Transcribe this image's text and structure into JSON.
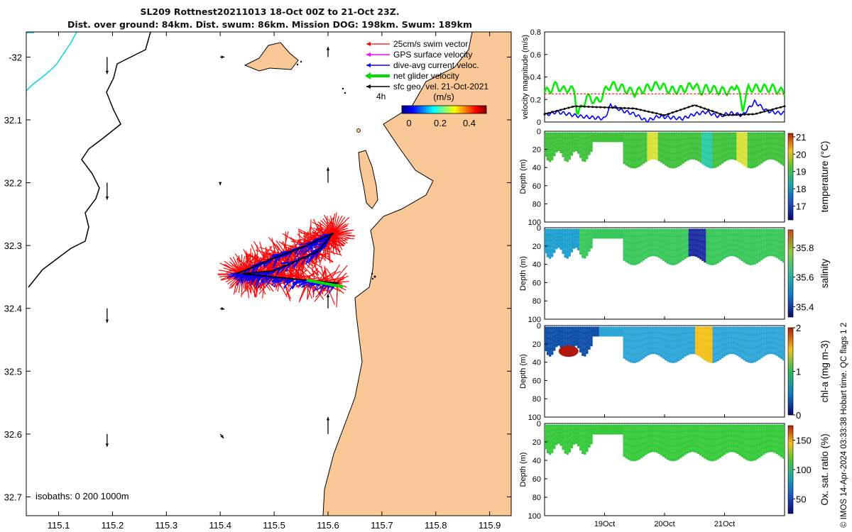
{
  "titles": {
    "line1": "SL209 Rottnest20211013 18-Oct 00Z to 21-Oct 23Z.",
    "line2": "Dist. over ground: 84km. Dist. swum: 86km. Mission DOG: 198km. Swum: 189km"
  },
  "credit": "© IMOS 14-Apr-2024 03:33:38 Hobart time. QC flags 1  2",
  "colors": {
    "land": "#FAC897",
    "swim_vector": "#FF0000",
    "gps_surface": "#FF00FF",
    "dive_avg_current": "#0000FF",
    "net_glider": "#00DD00",
    "geostrophic": "#000000",
    "coast_isobath": "#00D8E8"
  },
  "chart_data": [
    {
      "type": "scatter",
      "name": "track-map",
      "xlim": [
        115.04,
        115.94
      ],
      "ylim": [
        -32.73,
        -31.96
      ],
      "x_ticks": [
        "115.1",
        "115.2",
        "115.3",
        "115.4",
        "115.5",
        "115.6",
        "115.7",
        "115.8",
        "115.9"
      ],
      "y_ticks": [
        "-32",
        "32.1",
        "32.2",
        "32.3",
        "32.4",
        "32.5",
        "32.6",
        "32.7"
      ],
      "legend": {
        "placement": "top-right",
        "entries": [
          "25cm/s swim vector",
          "GPS surface velocity",
          "dive-avg current veloc.",
          "net glider velocity",
          "sfc geo. vel. 21-Oct-2021"
        ],
        "time_label": "4h"
      },
      "colorbar": {
        "label": "(m/s)",
        "ticks": [
          "0",
          "0.2",
          "0.4"
        ],
        "range": [
          0,
          0.5
        ]
      },
      "isobath_label": "isobaths: 0   200  1000m",
      "glider_track": [
        [
          115.43,
          -32.345
        ],
        [
          115.5,
          -32.32
        ],
        [
          115.56,
          -32.3
        ],
        [
          115.61,
          -32.28
        ],
        [
          115.58,
          -32.31
        ],
        [
          115.5,
          -32.34
        ],
        [
          115.44,
          -32.345
        ],
        [
          115.5,
          -32.35
        ],
        [
          115.56,
          -32.355
        ],
        [
          115.62,
          -32.36
        ]
      ],
      "geo_arrows": [
        {
          "lon": 115.19,
          "lat": -32.0,
          "u": 0,
          "v": -0.2
        },
        {
          "lon": 115.19,
          "lat": -32.2,
          "u": 0,
          "v": -0.2
        },
        {
          "lon": 115.19,
          "lat": -32.4,
          "u": 0,
          "v": -0.17
        },
        {
          "lon": 115.19,
          "lat": -32.6,
          "u": 0,
          "v": -0.15
        },
        {
          "lon": 115.4,
          "lat": -32.0,
          "u": 0.05,
          "v": 0
        },
        {
          "lon": 115.4,
          "lat": -32.2,
          "u": 0,
          "v": -0.03
        },
        {
          "lon": 115.4,
          "lat": -32.4,
          "u": 0.05,
          "v": -0.01
        },
        {
          "lon": 115.4,
          "lat": -32.6,
          "u": 0.04,
          "v": -0.05
        },
        {
          "lon": 115.6,
          "lat": -32.0,
          "u": 0,
          "v": 0.12
        },
        {
          "lon": 115.6,
          "lat": -32.2,
          "u": 0,
          "v": 0.18
        },
        {
          "lon": 115.6,
          "lat": -32.4,
          "u": 0,
          "v": 0.17
        },
        {
          "lon": 115.6,
          "lat": -32.6,
          "u": 0,
          "v": 0.2
        }
      ]
    },
    {
      "type": "line",
      "name": "velocity-magnitude",
      "ylabel": "velocity magnitude (m/s)",
      "xlim": [
        18.0,
        22.0
      ],
      "ylim": [
        0,
        0.8
      ],
      "y_ticks": [
        "0",
        "0.2",
        "0.4",
        "0.6",
        "0.8"
      ],
      "series": [
        {
          "color": "#00EE00",
          "x": [
            18.0,
            18.1,
            18.2,
            18.3,
            18.4,
            18.5,
            18.55,
            18.7,
            18.9,
            19.0,
            19.1,
            19.3,
            19.5,
            19.7,
            19.9,
            20.1,
            20.3,
            20.5,
            20.6,
            20.7,
            20.9,
            21.1,
            21.2,
            21.3,
            21.4,
            21.6,
            21.8,
            22.0
          ],
          "y": [
            0.26,
            0.29,
            0.33,
            0.28,
            0.3,
            0.27,
            0.06,
            0.22,
            0.18,
            0.27,
            0.33,
            0.3,
            0.26,
            0.3,
            0.33,
            0.28,
            0.29,
            0.33,
            0.27,
            0.3,
            0.28,
            0.27,
            0.34,
            0.12,
            0.3,
            0.3,
            0.3,
            0.26
          ]
        },
        {
          "color": "#FF0000",
          "x": [
            18.0,
            22.0
          ],
          "y": [
            0.25,
            0.25
          ]
        },
        {
          "color": "#0000FF",
          "x": [
            18.0,
            18.2,
            18.4,
            18.6,
            18.8,
            19.0,
            19.1,
            19.3,
            19.5,
            19.7,
            19.9,
            20.1,
            20.3,
            20.5,
            20.7,
            20.9,
            21.1,
            21.3,
            21.5,
            21.7,
            21.9,
            22.0
          ],
          "y": [
            0.06,
            0.09,
            0.07,
            0.05,
            0.04,
            0.03,
            0.15,
            0.1,
            0.07,
            0.01,
            0.05,
            0.04,
            0.03,
            0.07,
            0.09,
            0.05,
            0.08,
            0.06,
            0.18,
            0.1,
            0.08,
            0.08
          ]
        },
        {
          "color": "#000000",
          "x": [
            18.0,
            18.5,
            19.0,
            19.5,
            20.0,
            20.5,
            21.0,
            21.5,
            22.0
          ],
          "y": [
            0.07,
            0.14,
            0.13,
            0.12,
            0.06,
            0.15,
            0.06,
            0.07,
            0.14
          ]
        }
      ]
    },
    {
      "type": "heatmap",
      "name": "temperature-section",
      "ylabel": "Depth (m)",
      "zlabel": "temperature (°C)",
      "zlim": [
        16.2,
        21.2
      ],
      "colorbar_ticks": [
        "17",
        "18",
        "19",
        "20",
        "21"
      ],
      "ylim": [
        100,
        0
      ],
      "y_ticks": [
        "0",
        "20",
        "40",
        "60",
        "80",
        "100"
      ],
      "x_ticks": [
        "19Oct",
        "20Oct",
        "21Oct"
      ],
      "x_tick_values": [
        19,
        20,
        21
      ]
    },
    {
      "type": "heatmap",
      "name": "salinity-section",
      "ylabel": "Depth (m)",
      "zlabel": "salinity",
      "zlim": [
        35.33,
        35.92
      ],
      "colorbar_ticks": [
        "35.4",
        "35.6",
        "35.8"
      ],
      "ylim": [
        100,
        0
      ],
      "y_ticks": [
        "0",
        "20",
        "40",
        "60",
        "80",
        "100"
      ],
      "x_ticks": [
        "19Oct",
        "20Oct",
        "21Oct"
      ],
      "x_tick_values": [
        19,
        20,
        21
      ]
    },
    {
      "type": "heatmap",
      "name": "chla-section",
      "ylabel": "Depth (m)",
      "zlabel": "chl-a (mg m-3)",
      "zlim": [
        0,
        2
      ],
      "colorbar_ticks": [
        "0",
        "1",
        "2"
      ],
      "ylim": [
        100,
        0
      ],
      "y_ticks": [
        "0",
        "20",
        "40",
        "60",
        "80",
        "100"
      ],
      "x_ticks": [
        "19Oct",
        "20Oct",
        "21Oct"
      ],
      "x_tick_values": [
        19,
        20,
        21
      ]
    },
    {
      "type": "heatmap",
      "name": "oxygen-section",
      "ylabel": "Depth (m)",
      "zlabel": "Ox. sat. ratio (%)",
      "zlim": [
        25,
        175
      ],
      "colorbar_ticks": [
        "50",
        "100",
        "150"
      ],
      "ylim": [
        100,
        0
      ],
      "y_ticks": [
        "0",
        "20",
        "40",
        "60",
        "80",
        "100"
      ],
      "x_ticks": [
        "19Oct",
        "20Oct",
        "21Oct"
      ],
      "x_tick_values": [
        19,
        20,
        21
      ]
    }
  ]
}
